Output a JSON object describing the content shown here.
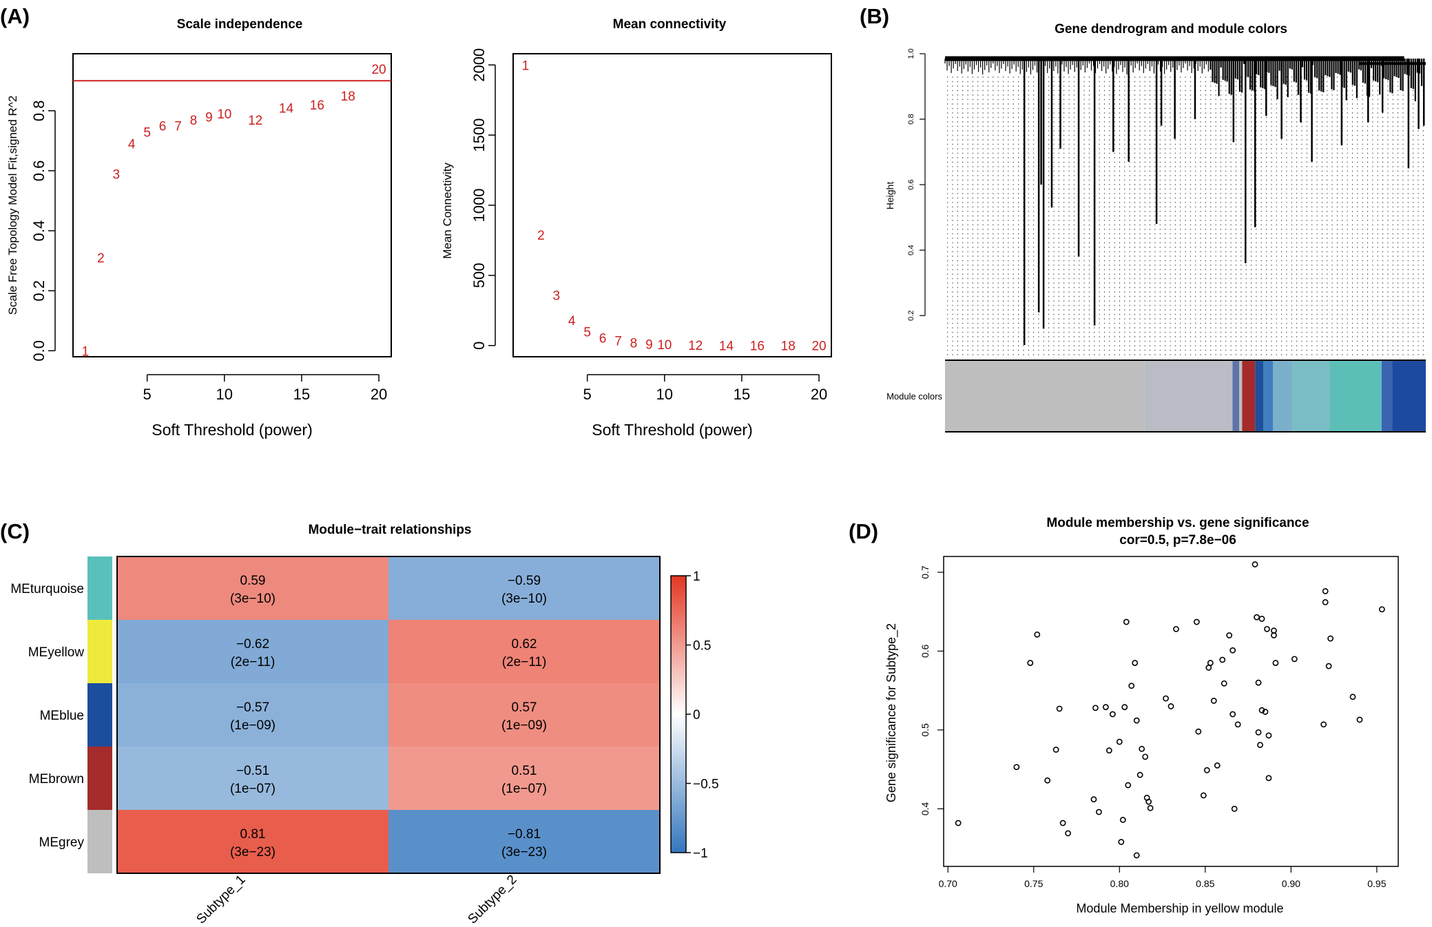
{
  "panels": {
    "a": {
      "label": "(A)"
    },
    "b": {
      "label": "(B)"
    },
    "c": {
      "label": "(C)"
    },
    "d": {
      "label": "(D)"
    }
  },
  "chart_data": [
    {
      "id": "scale_independence",
      "type": "scatter",
      "title": "Scale independence",
      "xlabel": "Soft Threshold (power)",
      "ylabel": "Scale Free Topology Model Fit,signed R^2",
      "xlim": [
        0.2,
        20.8
      ],
      "ylim": [
        -0.02,
        0.99
      ],
      "xticks": [
        5,
        10,
        15,
        20
      ],
      "yticks": [
        0.0,
        0.2,
        0.4,
        0.6,
        0.8
      ],
      "ytick_labels": [
        "0.0",
        "0.2",
        "0.4",
        "0.6",
        "0.8"
      ],
      "hline": 0.9,
      "line_color": "#cc1f1f",
      "label_color": "#cc1f1f",
      "points": [
        {
          "label": "1",
          "x": 1,
          "y": 0.0
        },
        {
          "label": "2",
          "x": 2,
          "y": 0.31
        },
        {
          "label": "3",
          "x": 3,
          "y": 0.59
        },
        {
          "label": "4",
          "x": 4,
          "y": 0.69
        },
        {
          "label": "5",
          "x": 5,
          "y": 0.73
        },
        {
          "label": "6",
          "x": 6,
          "y": 0.75
        },
        {
          "label": "7",
          "x": 7,
          "y": 0.75
        },
        {
          "label": "8",
          "x": 8,
          "y": 0.77
        },
        {
          "label": "9",
          "x": 9,
          "y": 0.78
        },
        {
          "label": "10",
          "x": 10,
          "y": 0.79
        },
        {
          "label": "12",
          "x": 12,
          "y": 0.77
        },
        {
          "label": "14",
          "x": 14,
          "y": 0.81
        },
        {
          "label": "16",
          "x": 16,
          "y": 0.82
        },
        {
          "label": "18",
          "x": 18,
          "y": 0.85
        },
        {
          "label": "20",
          "x": 20,
          "y": 0.94
        }
      ]
    },
    {
      "id": "mean_connectivity",
      "type": "scatter",
      "title": "Mean connectivity",
      "xlabel": "Soft Threshold (power)",
      "ylabel": "Mean Connectivity",
      "xlim": [
        0.2,
        20.8
      ],
      "ylim": [
        -80,
        2080
      ],
      "xticks": [
        5,
        10,
        15,
        20
      ],
      "yticks": [
        0,
        500,
        1000,
        1500,
        2000
      ],
      "ytick_labels": [
        "0",
        "500",
        "1000",
        "1500",
        "2000"
      ],
      "label_color": "#cc1f1f",
      "points": [
        {
          "label": "1",
          "x": 1,
          "y": 2000
        },
        {
          "label": "2",
          "x": 2,
          "y": 790
        },
        {
          "label": "3",
          "x": 3,
          "y": 360
        },
        {
          "label": "4",
          "x": 4,
          "y": 180
        },
        {
          "label": "5",
          "x": 5,
          "y": 100
        },
        {
          "label": "6",
          "x": 6,
          "y": 55
        },
        {
          "label": "7",
          "x": 7,
          "y": 35
        },
        {
          "label": "8",
          "x": 8,
          "y": 20
        },
        {
          "label": "9",
          "x": 9,
          "y": 12
        },
        {
          "label": "10",
          "x": 10,
          "y": 8
        },
        {
          "label": "12",
          "x": 12,
          "y": 4
        },
        {
          "label": "14",
          "x": 14,
          "y": 2
        },
        {
          "label": "16",
          "x": 16,
          "y": 1
        },
        {
          "label": "18",
          "x": 18,
          "y": 1
        },
        {
          "label": "20",
          "x": 20,
          "y": 0
        }
      ]
    },
    {
      "id": "dendrogram",
      "type": "other",
      "title": "Gene dendrogram and module colors",
      "ylabel": "Height",
      "ylim": [
        0.07,
        1.0
      ],
      "yticks": [
        0.2,
        0.4,
        0.6,
        0.8,
        1.0
      ],
      "ytick_labels": [
        "0.2",
        "0.4",
        "0.6",
        "0.8",
        "1.0"
      ],
      "colorbar_label": "Module colors",
      "leaf_count": 95,
      "branches": [
        {
          "x": 0.165,
          "h": 0.11
        },
        {
          "x": 0.195,
          "h": 0.21
        },
        {
          "x": 0.205,
          "h": 0.16
        },
        {
          "x": 0.2,
          "h": 0.6
        },
        {
          "x": 0.222,
          "h": 0.53
        },
        {
          "x": 0.24,
          "h": 0.71
        },
        {
          "x": 0.278,
          "h": 0.38
        },
        {
          "x": 0.311,
          "h": 0.17
        },
        {
          "x": 0.35,
          "h": 0.7
        },
        {
          "x": 0.382,
          "h": 0.67
        },
        {
          "x": 0.44,
          "h": 0.48
        },
        {
          "x": 0.478,
          "h": 0.74
        },
        {
          "x": 0.45,
          "h": 0.78
        },
        {
          "x": 0.52,
          "h": 0.8
        },
        {
          "x": 0.6,
          "h": 0.73
        },
        {
          "x": 0.625,
          "h": 0.36
        },
        {
          "x": 0.645,
          "h": 0.47
        },
        {
          "x": 0.668,
          "h": 0.81
        },
        {
          "x": 0.7,
          "h": 0.74
        },
        {
          "x": 0.74,
          "h": 0.79
        },
        {
          "x": 0.763,
          "h": 0.67
        },
        {
          "x": 0.825,
          "h": 0.72
        },
        {
          "x": 0.88,
          "h": 0.79
        },
        {
          "x": 0.91,
          "h": 0.82
        },
        {
          "x": 0.964,
          "h": 0.65
        },
        {
          "x": 0.985,
          "h": 0.77
        },
        {
          "x": 0.996,
          "h": 0.78
        }
      ],
      "module_segments": [
        {
          "from": 0.0,
          "to": 0.415,
          "color": "#bebebe"
        },
        {
          "from": 0.415,
          "to": 0.598,
          "color": "#b9bcc4"
        },
        {
          "from": 0.598,
          "to": 0.612,
          "color": "#5f73a8"
        },
        {
          "from": 0.612,
          "to": 0.618,
          "color": "#bebebe"
        },
        {
          "from": 0.618,
          "to": 0.645,
          "color": "#a52a2a"
        },
        {
          "from": 0.645,
          "to": 0.662,
          "color": "#1e4f9a"
        },
        {
          "from": 0.662,
          "to": 0.682,
          "color": "#3f7fc0"
        },
        {
          "from": 0.682,
          "to": 0.722,
          "color": "#7ab0c9"
        },
        {
          "from": 0.722,
          "to": 0.8,
          "color": "#7bbdc4"
        },
        {
          "from": 0.8,
          "to": 0.908,
          "color": "#5bbfb8"
        },
        {
          "from": 0.908,
          "to": 0.93,
          "color": "#3a63b0"
        },
        {
          "from": 0.93,
          "to": 1.0,
          "color": "#1c4aa0"
        }
      ]
    },
    {
      "id": "module_trait",
      "type": "heatmap",
      "title": "Module−trait relationships",
      "rows": [
        "MEturquoise",
        "MEyellow",
        "MEblue",
        "MEbrown",
        "MEgrey"
      ],
      "row_colors": [
        "#5ac0bb",
        "#eeea3d",
        "#1d4e9d",
        "#a42c2c",
        "#bebebe"
      ],
      "columns": [
        "Subtype_1",
        "Subtype_2"
      ],
      "values": [
        [
          0.59,
          -0.59
        ],
        [
          -0.62,
          0.62
        ],
        [
          -0.57,
          0.57
        ],
        [
          -0.51,
          0.51
        ],
        [
          0.81,
          -0.81
        ]
      ],
      "value_labels": [
        [
          "0.59",
          "−0.59"
        ],
        [
          "−0.62",
          "0.62"
        ],
        [
          "−0.57",
          "0.57"
        ],
        [
          "−0.51",
          "0.51"
        ],
        [
          "0.81",
          "−0.81"
        ]
      ],
      "pvalues": [
        [
          "(3e−10)",
          "(3e−10)"
        ],
        [
          "(2e−11)",
          "(2e−11)"
        ],
        [
          "(1e−09)",
          "(1e−09)"
        ],
        [
          "(1e−07)",
          "(1e−07)"
        ],
        [
          "(3e−23)",
          "(3e−23)"
        ]
      ],
      "colorscale": {
        "low": "#3376bd",
        "mid": "#ffffff",
        "high": "#e33722"
      },
      "legend_ticks": [
        1,
        0.5,
        0,
        -0.5,
        -1
      ],
      "legend_tick_labels": [
        "1",
        "0.5",
        "0",
        "−0.5",
        "−1"
      ]
    },
    {
      "id": "mm_vs_gs",
      "type": "scatter",
      "title": "Module membership vs. gene significance",
      "subtitle": "cor=0.5, p=7.8e−06",
      "xlabel": "Module Membership in yellow module",
      "ylabel": "Gene significance for Subtype_2",
      "xlim": [
        0.6975,
        0.9625
      ],
      "ylim": [
        0.327,
        0.72
      ],
      "xticks": [
        0.7,
        0.75,
        0.8,
        0.85,
        0.9,
        0.95
      ],
      "xtick_labels": [
        "0.70",
        "0.75",
        "0.80",
        "0.85",
        "0.90",
        "0.95"
      ],
      "yticks": [
        0.4,
        0.5,
        0.6,
        0.7
      ],
      "ytick_labels": [
        "0.4",
        "0.5",
        "0.6",
        "0.7"
      ],
      "points": [
        [
          0.706,
          0.382
        ],
        [
          0.74,
          0.453
        ],
        [
          0.748,
          0.585
        ],
        [
          0.752,
          0.621
        ],
        [
          0.758,
          0.436
        ],
        [
          0.763,
          0.475
        ],
        [
          0.765,
          0.527
        ],
        [
          0.767,
          0.382
        ],
        [
          0.77,
          0.369
        ],
        [
          0.785,
          0.412
        ],
        [
          0.786,
          0.528
        ],
        [
          0.788,
          0.396
        ],
        [
          0.792,
          0.529
        ],
        [
          0.794,
          0.474
        ],
        [
          0.796,
          0.52
        ],
        [
          0.8,
          0.485
        ],
        [
          0.801,
          0.358
        ],
        [
          0.802,
          0.386
        ],
        [
          0.803,
          0.529
        ],
        [
          0.804,
          0.637
        ],
        [
          0.805,
          0.43
        ],
        [
          0.807,
          0.556
        ],
        [
          0.809,
          0.585
        ],
        [
          0.81,
          0.512
        ],
        [
          0.81,
          0.341
        ],
        [
          0.812,
          0.443
        ],
        [
          0.813,
          0.476
        ],
        [
          0.815,
          0.466
        ],
        [
          0.816,
          0.414
        ],
        [
          0.817,
          0.409
        ],
        [
          0.818,
          0.401
        ],
        [
          0.827,
          0.54
        ],
        [
          0.83,
          0.53
        ],
        [
          0.833,
          0.628
        ],
        [
          0.845,
          0.637
        ],
        [
          0.846,
          0.498
        ],
        [
          0.849,
          0.417
        ],
        [
          0.851,
          0.449
        ],
        [
          0.852,
          0.579
        ],
        [
          0.853,
          0.585
        ],
        [
          0.855,
          0.537
        ],
        [
          0.857,
          0.455
        ],
        [
          0.86,
          0.589
        ],
        [
          0.861,
          0.559
        ],
        [
          0.864,
          0.62
        ],
        [
          0.866,
          0.601
        ],
        [
          0.866,
          0.52
        ],
        [
          0.867,
          0.4
        ],
        [
          0.869,
          0.507
        ],
        [
          0.879,
          0.71
        ],
        [
          0.88,
          0.643
        ],
        [
          0.881,
          0.56
        ],
        [
          0.881,
          0.497
        ],
        [
          0.882,
          0.481
        ],
        [
          0.883,
          0.641
        ],
        [
          0.883,
          0.525
        ],
        [
          0.885,
          0.523
        ],
        [
          0.886,
          0.628
        ],
        [
          0.887,
          0.493
        ],
        [
          0.887,
          0.439
        ],
        [
          0.89,
          0.626
        ],
        [
          0.89,
          0.62
        ],
        [
          0.891,
          0.585
        ],
        [
          0.902,
          0.59
        ],
        [
          0.919,
          0.507
        ],
        [
          0.92,
          0.676
        ],
        [
          0.92,
          0.662
        ],
        [
          0.922,
          0.581
        ],
        [
          0.923,
          0.616
        ],
        [
          0.936,
          0.542
        ],
        [
          0.94,
          0.513
        ],
        [
          0.953,
          0.653
        ]
      ]
    }
  ]
}
